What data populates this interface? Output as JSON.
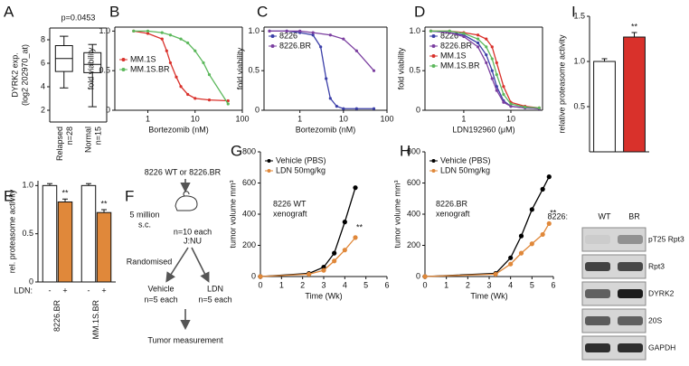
{
  "chart_data": [
    {
      "panel": "A",
      "type": "box",
      "ylabel": [
        "DYRK2 exp.",
        "(log2 202970_at)"
      ],
      "annotation": "p=0.0453",
      "categories": [
        "Relapsed",
        "Normal"
      ],
      "n_labels": [
        "n=28",
        "n=15"
      ],
      "boxes": [
        {
          "min": 3.9,
          "q1": 5.3,
          "median": 6.4,
          "q3": 7.5,
          "max": 8.3
        },
        {
          "min": 2.3,
          "q1": 5.2,
          "median": 5.9,
          "q3": 6.9,
          "max": 7.6
        }
      ],
      "ylim": [
        1,
        9
      ],
      "yticks": [
        2,
        4,
        6,
        8
      ],
      "frame": true
    },
    {
      "panel": "B",
      "type": "line",
      "xscale": "log",
      "xlabel": "Bortezomib (nM)",
      "ylabel": "fold viability",
      "xlim": [
        0.2,
        100
      ],
      "xticks": [
        1,
        10,
        100
      ],
      "ylim": [
        0,
        1.05
      ],
      "yticks": [
        0,
        0.5,
        {
          "value": 1,
          "label": "1.0"
        }
      ],
      "legend": "center left",
      "frame": true,
      "series": [
        {
          "name": "MM.1S",
          "color": "#d9312b",
          "x": [
            0.5,
            1,
            2,
            2.5,
            3,
            4,
            5,
            7,
            10,
            20,
            50
          ],
          "values": [
            1,
            0.97,
            0.9,
            0.75,
            0.6,
            0.42,
            0.3,
            0.2,
            0.15,
            0.13,
            0.12
          ]
        },
        {
          "name": "MM.1S.BR",
          "color": "#5cb85c",
          "x": [
            0.5,
            1,
            2,
            3,
            5,
            7,
            10,
            15,
            20,
            50
          ],
          "values": [
            1,
            1,
            0.98,
            0.95,
            0.9,
            0.85,
            0.75,
            0.6,
            0.45,
            0.08
          ]
        }
      ]
    },
    {
      "panel": "C",
      "type": "line",
      "xscale": "log",
      "xlabel": "Bortezomib (nM)",
      "ylabel": "fold viability",
      "xlim": [
        0.15,
        100
      ],
      "xticks": [
        1,
        10,
        100
      ],
      "ylim": [
        0,
        1.05
      ],
      "yticks": [
        0,
        0.5,
        {
          "value": 1,
          "label": "1.0"
        }
      ],
      "legend": "upper left",
      "frame": true,
      "series": [
        {
          "name": "8226",
          "color": "#3b3fa8",
          "x": [
            0.2,
            0.5,
            1,
            2,
            3,
            4,
            5,
            7,
            10,
            20,
            50
          ],
          "values": [
            1,
            1,
            0.98,
            0.95,
            0.8,
            0.4,
            0.15,
            0.05,
            0.02,
            0.02,
            0.02
          ]
        },
        {
          "name": "8226.BR",
          "color": "#7b3fa0",
          "x": [
            0.2,
            0.5,
            1,
            2,
            5,
            10,
            20,
            50
          ],
          "values": [
            1,
            1,
            1,
            0.98,
            0.95,
            0.9,
            0.75,
            0.5
          ]
        }
      ]
    },
    {
      "panel": "D",
      "type": "line",
      "xscale": "log",
      "xlabel": "LDN192960 (μM)",
      "ylabel": "fold viability",
      "xlim": [
        0.15,
        47
      ],
      "xticks": [
        1,
        10
      ],
      "ylim": [
        0,
        1.05
      ],
      "yticks": [
        0,
        0.5,
        {
          "value": 1,
          "label": "1.0"
        }
      ],
      "legend": "upper left",
      "frame": true,
      "series": [
        {
          "name": "8226",
          "color": "#3b3fa8",
          "x": [
            0.2,
            0.5,
            1,
            2,
            3,
            4,
            5,
            7,
            10,
            20,
            40
          ],
          "values": [
            1,
            0.98,
            0.95,
            0.85,
            0.7,
            0.5,
            0.3,
            0.12,
            0.05,
            0.03,
            0.02
          ]
        },
        {
          "name": "8226.BR",
          "color": "#7b3fa0",
          "x": [
            0.2,
            0.5,
            1,
            2,
            3,
            4,
            5,
            7,
            10,
            20,
            40
          ],
          "values": [
            1,
            0.98,
            0.93,
            0.8,
            0.6,
            0.4,
            0.25,
            0.1,
            0.05,
            0.03,
            0.02
          ]
        },
        {
          "name": "MM.1S",
          "color": "#d9312b",
          "x": [
            0.2,
            0.5,
            1,
            2,
            3,
            4,
            5,
            7,
            10,
            20,
            40
          ],
          "values": [
            1,
            1,
            0.98,
            0.95,
            0.9,
            0.8,
            0.6,
            0.3,
            0.1,
            0.05,
            0.03
          ]
        },
        {
          "name": "MM.1S.BR",
          "color": "#5cb85c",
          "x": [
            0.2,
            0.5,
            1,
            2,
            3,
            4,
            5,
            7,
            10,
            20,
            40
          ],
          "values": [
            1,
            1,
            0.97,
            0.9,
            0.8,
            0.65,
            0.45,
            0.2,
            0.08,
            0.04,
            0.03
          ]
        }
      ]
    },
    {
      "panel": "I",
      "type": "bar",
      "ylabel": "relative proteasome activity",
      "category_title": "8226:",
      "categories": [
        "WT",
        "BR"
      ],
      "ylim": [
        0,
        1.5
      ],
      "yticks": [
        0.5,
        {
          "value": 1,
          "label": "1.0"
        },
        1.5
      ],
      "series": [
        {
          "colors": [
            "#ffffff",
            "#d9312b"
          ],
          "values": [
            1.0,
            1.27
          ],
          "errors": [
            0.03,
            0.05
          ],
          "sig": [
            null,
            "**"
          ]
        }
      ]
    },
    {
      "panel": "E",
      "type": "bar",
      "ylabel": "rel. proteasome activity",
      "legend_title": "LDN:",
      "categories": [
        "8226.BR",
        "MM.1S.BR"
      ],
      "ylim": [
        0,
        1.05
      ],
      "yticks": [
        0,
        0.5,
        {
          "value": 1,
          "label": "1.0"
        }
      ],
      "series": [
        {
          "name": "-",
          "color": "#ffffff",
          "values": [
            1.0,
            1.0
          ],
          "errors": [
            0.02,
            0.02
          ],
          "sig": [
            null,
            null
          ]
        },
        {
          "name": "+",
          "color": "#e0883a",
          "values": [
            0.83,
            0.72
          ],
          "errors": [
            0.03,
            0.03
          ],
          "sig": [
            "**",
            "**"
          ]
        }
      ]
    },
    {
      "panel": "G",
      "type": "line",
      "xscale": "linear",
      "xlabel": "Time (Wk)",
      "ylabel": "tumor volume mm³",
      "xlim": [
        0,
        6
      ],
      "xticks": [
        0,
        1,
        2,
        3,
        4,
        5,
        6
      ],
      "ylim": [
        0,
        800
      ],
      "yticks": [
        0,
        200,
        400,
        600,
        800
      ],
      "legend": "upper left",
      "annotation": [
        "8226 WT",
        "xenograft"
      ],
      "sig": "**",
      "series": [
        {
          "name": "Vehicle (PBS)",
          "color": "#000000",
          "x": [
            0,
            2.3,
            3,
            3.5,
            4,
            4.5
          ],
          "values": [
            0,
            20,
            60,
            150,
            350,
            570
          ]
        },
        {
          "name": "LDN 50mg/kg",
          "color": "#e0883a",
          "x": [
            0,
            2.3,
            3,
            3.5,
            4,
            4.5
          ],
          "values": [
            0,
            15,
            40,
            100,
            170,
            250
          ]
        }
      ]
    },
    {
      "panel": "H",
      "type": "line",
      "xscale": "linear",
      "xlabel": "Time (Wk)",
      "ylabel": "tumor volume mm³",
      "xlim": [
        0,
        6
      ],
      "xticks": [
        0,
        1,
        2,
        3,
        4,
        5,
        6
      ],
      "ylim": [
        0,
        800
      ],
      "yticks": [
        0,
        200,
        400,
        600,
        800
      ],
      "legend": "upper left",
      "annotation": [
        "8226.BR",
        "xenograft"
      ],
      "sig": "**",
      "series": [
        {
          "name": "Vehicle (PBS)",
          "color": "#000000",
          "x": [
            0,
            3.3,
            4,
            4.5,
            5,
            5.5,
            5.8
          ],
          "values": [
            0,
            20,
            120,
            260,
            430,
            560,
            640
          ]
        },
        {
          "name": "LDN 50mg/kg",
          "color": "#e0883a",
          "x": [
            0,
            3.3,
            4,
            4.5,
            5,
            5.5,
            5.8
          ],
          "values": [
            0,
            15,
            80,
            150,
            210,
            270,
            340
          ]
        }
      ]
    }
  ],
  "diagram": {
    "panel": "F",
    "start": "8226 WT or 8226.BR",
    "injection": [
      "5 million",
      "s.c."
    ],
    "mice": [
      "n=10 each",
      "J:NU"
    ],
    "step": "Randomised",
    "arms": [
      [
        "Vehicle",
        "n=5 each"
      ],
      [
        "LDN",
        "n=5 each"
      ]
    ],
    "end": "Tumor measurement"
  },
  "blot": {
    "rows": [
      "pT25 Rpt3",
      "Rpt3",
      "DYRK2",
      "20S",
      "GAPDH"
    ]
  }
}
